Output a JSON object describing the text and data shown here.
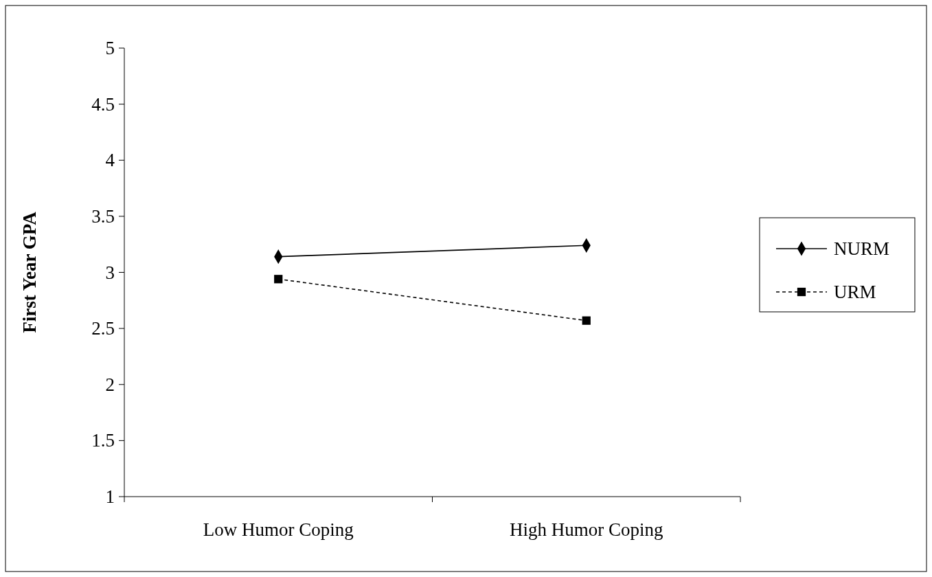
{
  "chart_data": {
    "type": "line",
    "ylabel": "First Year GPA",
    "categories": [
      "Low Humor Coping",
      "High Humor Coping"
    ],
    "series": [
      {
        "name": "NURM",
        "color": "#000000",
        "values": [
          3.14,
          3.24
        ],
        "marker": "diamond",
        "line_style": "solid"
      },
      {
        "name": "URM",
        "color": "#000000",
        "values": [
          2.94,
          2.57
        ],
        "marker": "square",
        "line_style": "dashed"
      }
    ],
    "ylim": [
      1,
      5
    ],
    "yticks": [
      1,
      1.5,
      2,
      2.5,
      3,
      3.5,
      4,
      4.5,
      5
    ],
    "grid": false,
    "legend": "right"
  }
}
